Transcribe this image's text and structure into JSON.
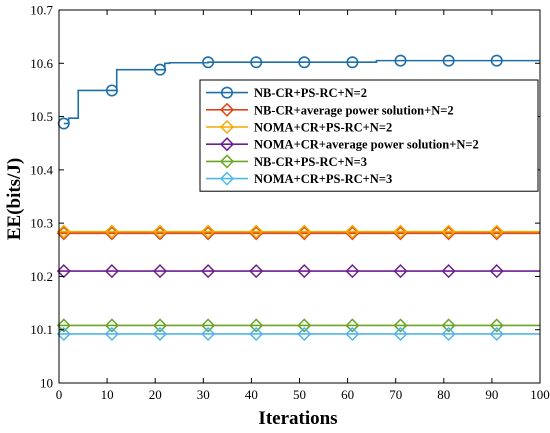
{
  "chart_data": {
    "type": "line",
    "title": "",
    "xlabel": "Iterations",
    "ylabel": "EE(bits/J)",
    "xlim": [
      0,
      100
    ],
    "ylim": [
      10,
      10.7
    ],
    "xticks": [
      0,
      10,
      20,
      30,
      40,
      50,
      60,
      70,
      80,
      90,
      100
    ],
    "yticks": [
      10,
      10.1,
      10.2,
      10.3,
      10.4,
      10.5,
      10.6,
      10.7
    ],
    "xtick_labels": [
      "0",
      "10",
      "20",
      "30",
      "40",
      "50",
      "60",
      "70",
      "80",
      "90",
      "100"
    ],
    "ytick_labels": [
      "10",
      "10.1",
      "10.2",
      "10.3",
      "10.4",
      "10.5",
      "10.6",
      "10.7"
    ],
    "grid": false,
    "legend_position": "upper-right",
    "marker_x": [
      1,
      11,
      21,
      31,
      41,
      51,
      61,
      71,
      81,
      91
    ],
    "series": [
      {
        "name": "NB-CR+PS-RC+N=2",
        "color": "#1f6fa8",
        "marker": "circle",
        "step": true,
        "x": [
          1,
          2,
          3,
          4,
          5,
          6,
          7,
          8,
          9,
          10,
          11,
          12,
          13,
          14,
          15,
          16,
          17,
          18,
          19,
          20,
          21,
          22,
          23,
          24,
          25,
          26,
          27,
          28,
          29,
          30,
          31,
          40,
          50,
          60,
          65,
          66,
          70,
          71,
          80,
          90,
          100
        ],
        "values": [
          10.487,
          10.497,
          10.497,
          10.549,
          10.549,
          10.549,
          10.549,
          10.549,
          10.549,
          10.549,
          10.549,
          10.588,
          10.588,
          10.588,
          10.588,
          10.588,
          10.588,
          10.588,
          10.588,
          10.588,
          10.588,
          10.6,
          10.601,
          10.601,
          10.601,
          10.601,
          10.601,
          10.601,
          10.601,
          10.601,
          10.602,
          10.602,
          10.602,
          10.602,
          10.602,
          10.605,
          10.605,
          10.605,
          10.605,
          10.605,
          10.605
        ],
        "marker_values": [
          10.487,
          10.549,
          10.588,
          10.602,
          10.602,
          10.602,
          10.602,
          10.605,
          10.605,
          10.605
        ]
      },
      {
        "name": "NB-CR+average power solution+N=2",
        "color": "#e0461b",
        "marker": "diamond",
        "x": [
          0,
          100
        ],
        "values": [
          10.281,
          10.281
        ],
        "marker_values": [
          10.281,
          10.281,
          10.281,
          10.281,
          10.281,
          10.281,
          10.281,
          10.281,
          10.281,
          10.281
        ]
      },
      {
        "name": "NOMA+CR+PS-RC+N=2",
        "color": "#f2a900",
        "marker": "diamond",
        "x": [
          0,
          100
        ],
        "values": [
          10.284,
          10.284
        ],
        "marker_values": [
          10.284,
          10.284,
          10.284,
          10.284,
          10.284,
          10.284,
          10.284,
          10.284,
          10.284,
          10.284
        ]
      },
      {
        "name": "NOMA+CR+average power solution+N=2",
        "color": "#6b1f8f",
        "marker": "diamond",
        "x": [
          0,
          100
        ],
        "values": [
          10.21,
          10.21
        ],
        "marker_values": [
          10.21,
          10.21,
          10.21,
          10.21,
          10.21,
          10.21,
          10.21,
          10.21,
          10.21,
          10.21
        ]
      },
      {
        "name": "NB-CR+PS-RC+N=3",
        "color": "#6aa527",
        "marker": "diamond",
        "x": [
          0,
          100
        ],
        "values": [
          10.108,
          10.108
        ],
        "marker_values": [
          10.108,
          10.108,
          10.108,
          10.108,
          10.108,
          10.108,
          10.108,
          10.108,
          10.108,
          10.108
        ]
      },
      {
        "name": "NOMA+CR+PS-RC+N=3",
        "color": "#4fb6e6",
        "marker": "diamond",
        "x": [
          0,
          100
        ],
        "values": [
          10.092,
          10.092
        ],
        "marker_values": [
          10.092,
          10.092,
          10.092,
          10.092,
          10.092,
          10.092,
          10.092,
          10.092,
          10.092,
          10.092
        ]
      }
    ]
  }
}
